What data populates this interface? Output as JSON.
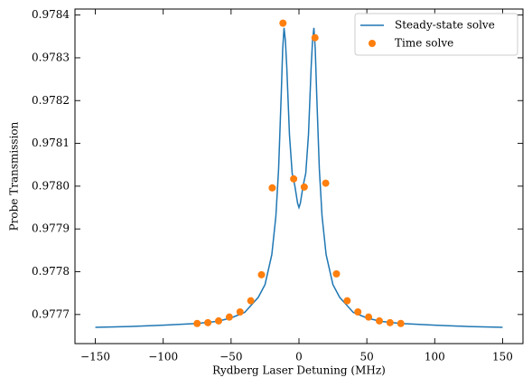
{
  "chart_data": {
    "type": "line",
    "xlabel": "Rydberg Laser Detuning (MHz)",
    "ylabel": "Probe Transmission",
    "xlim": [
      -165,
      165
    ],
    "ylim": [
      0.977632,
      0.978414
    ],
    "xticks": [
      {
        "value": -150,
        "label": "−150"
      },
      {
        "value": -100,
        "label": "−100"
      },
      {
        "value": -50,
        "label": "−50"
      },
      0,
      50,
      100,
      150
    ],
    "yticks": [
      0.9777,
      0.9778,
      0.9779,
      {
        "value": 0.978,
        "label": "0.9780"
      },
      0.9781,
      0.9782,
      0.9783,
      0.9784
    ],
    "legend": "upper right",
    "series": [
      {
        "name": "Steady-state solve",
        "type": "line",
        "color": "#1f77b4",
        "x": [
          -150,
          -125,
          -100,
          -75,
          -60,
          -50,
          -40,
          -30,
          -25,
          -20,
          -17,
          -15,
          -13,
          -12,
          -11,
          -10,
          -9,
          -7,
          -5,
          -3,
          -1,
          0,
          1,
          3,
          5,
          7,
          9,
          10,
          11,
          12,
          13,
          15,
          17,
          20,
          25,
          30,
          40,
          50,
          60,
          75,
          100,
          125,
          150
        ],
        "values": [
          0.97767,
          0.977672,
          0.977675,
          0.977679,
          0.977684,
          0.977692,
          0.977705,
          0.97774,
          0.97777,
          0.97784,
          0.97793,
          0.97804,
          0.97822,
          0.97832,
          0.97837,
          0.97834,
          0.97828,
          0.97812,
          0.97803,
          0.978,
          0.97796,
          0.97795,
          0.97796,
          0.978,
          0.97803,
          0.97812,
          0.97828,
          0.97834,
          0.97837,
          0.97832,
          0.97822,
          0.97804,
          0.97793,
          0.97784,
          0.97777,
          0.97774,
          0.977705,
          0.977692,
          0.977684,
          0.977679,
          0.977675,
          0.977672,
          0.97767
        ]
      },
      {
        "name": "Time solve",
        "type": "scatter",
        "color": "#ff7f0e",
        "x": [
          -75,
          -67.1,
          -59.2,
          -51.3,
          -43.4,
          -35.5,
          -27.6,
          -19.7,
          -11.8,
          -3.9,
          3.9,
          11.8,
          19.7,
          27.6,
          35.5,
          43.4,
          51.3,
          59.2,
          67.1,
          75
        ],
        "values": [
          0.977679,
          0.977681,
          0.977685,
          0.977694,
          0.977706,
          0.977732,
          0.977793,
          0.977996,
          0.978381,
          0.978017,
          0.977998,
          0.978347,
          0.978007,
          0.977795,
          0.977732,
          0.977706,
          0.977694,
          0.977685,
          0.977681,
          0.977679
        ]
      }
    ]
  }
}
